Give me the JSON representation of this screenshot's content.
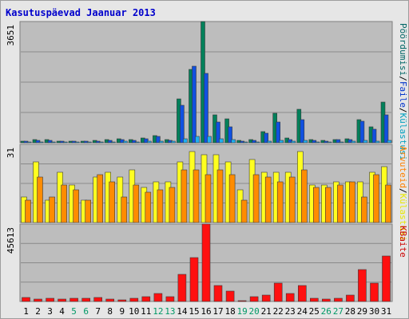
{
  "window_title": "Kasutuspäevad Jaanuar 2013",
  "colors": {
    "background": "#e6e6e6",
    "plot_background": "#bdbdbd",
    "weekend": "#009966",
    "weekday": "#000000",
    "title": "#0000cc"
  },
  "chart_data": [
    {
      "type": "bar",
      "panel": "top",
      "ytick_max": "3651",
      "ylim": [
        0,
        3651
      ],
      "grid": true,
      "legend": [
        {
          "label": "Pöördumisi",
          "color": "#006666"
        },
        {
          "label": "/",
          "color": "#000000"
        },
        {
          "label": "Faile",
          "color": "#0033cc"
        },
        {
          "label": "/",
          "color": "#000000"
        },
        {
          "label": "Külastusi",
          "color": "#00a0c0"
        }
      ],
      "categories": [
        "1",
        "2",
        "3",
        "4",
        "5",
        "6",
        "7",
        "8",
        "9",
        "10",
        "11",
        "12",
        "13",
        "14",
        "15",
        "16",
        "17",
        "18",
        "19",
        "20",
        "21",
        "22",
        "23",
        "24",
        "25",
        "26",
        "27",
        "28",
        "29",
        "30",
        "31"
      ],
      "series": [
        {
          "name": "Pöördumisi",
          "color": "#00805a",
          "values": [
            60,
            95,
            85,
            60,
            60,
            55,
            65,
            95,
            130,
            95,
            145,
            210,
            105,
            1310,
            2220,
            3651,
            830,
            710,
            75,
            95,
            330,
            880,
            135,
            1010,
            85,
            80,
            105,
            120,
            700,
            480,
            1230
          ]
        },
        {
          "name": "Faile",
          "color": "#1050e0",
          "values": [
            45,
            75,
            65,
            45,
            45,
            40,
            50,
            75,
            100,
            70,
            120,
            190,
            80,
            1130,
            2300,
            2100,
            620,
            470,
            55,
            75,
            290,
            620,
            100,
            700,
            70,
            60,
            85,
            95,
            650,
            420,
            830
          ]
        },
        {
          "name": "Külastusi",
          "color": "#20b0f0",
          "values": [
            25,
            35,
            30,
            25,
            25,
            20,
            30,
            35,
            40,
            35,
            45,
            60,
            40,
            130,
            200,
            190,
            110,
            95,
            30,
            35,
            60,
            80,
            40,
            70,
            35,
            30,
            35,
            40,
            70,
            55,
            75
          ]
        }
      ]
    },
    {
      "type": "bar",
      "panel": "middle",
      "ytick_max": "31",
      "ylim": [
        0,
        31
      ],
      "grid": true,
      "legend": [
        {
          "label": "Arvuteid",
          "color": "#ff8000"
        },
        {
          "label": "/",
          "color": "#000000"
        },
        {
          "label": "Külastusi",
          "color": "#e8e800"
        }
      ],
      "categories": [
        "1",
        "2",
        "3",
        "4",
        "5",
        "6",
        "7",
        "8",
        "9",
        "10",
        "11",
        "12",
        "13",
        "14",
        "15",
        "16",
        "17",
        "18",
        "19",
        "20",
        "21",
        "22",
        "23",
        "24",
        "25",
        "26",
        "27",
        "28",
        "29",
        "30",
        "31"
      ],
      "series": [
        {
          "name": "Külastusi",
          "color": "#ffff20",
          "values": [
            10,
            24,
            9,
            20,
            15,
            9,
            18,
            20,
            18,
            21,
            14,
            16,
            16,
            24,
            28,
            27,
            27,
            24,
            13,
            25,
            20,
            20,
            20,
            28,
            15,
            15,
            16,
            16,
            16,
            20,
            22
          ]
        },
        {
          "name": "Arvuteid",
          "color": "#ff8c00",
          "values": [
            9,
            18,
            10,
            15,
            13,
            9,
            19,
            16,
            10,
            15,
            12,
            13,
            14,
            21,
            21,
            19,
            21,
            19,
            9,
            19,
            18,
            16,
            18,
            21,
            14,
            14,
            15,
            16,
            10,
            19,
            15
          ]
        }
      ]
    },
    {
      "type": "bar",
      "panel": "bottom",
      "ytick_max": "45613",
      "ylim": [
        0,
        45613
      ],
      "grid": true,
      "legend": [
        {
          "label": "KBaite",
          "color": "#cc0000"
        }
      ],
      "categories": [
        "1",
        "2",
        "3",
        "4",
        "5",
        "6",
        "7",
        "8",
        "9",
        "10",
        "11",
        "12",
        "13",
        "14",
        "15",
        "16",
        "17",
        "18",
        "19",
        "20",
        "21",
        "22",
        "23",
        "24",
        "25",
        "26",
        "27",
        "28",
        "29",
        "30",
        "31"
      ],
      "series": [
        {
          "name": "KBaite",
          "color": "#ff1010",
          "values": [
            2200,
            1400,
            1700,
            1500,
            1900,
            2100,
            2300,
            1400,
            1000,
            1700,
            2900,
            4900,
            2800,
            16000,
            26000,
            45613,
            9300,
            5900,
            700,
            2600,
            3700,
            11000,
            4500,
            9200,
            2000,
            1300,
            2000,
            3700,
            19000,
            11000,
            27000
          ]
        }
      ]
    }
  ],
  "x_labels": [
    {
      "t": "1",
      "weekend": false
    },
    {
      "t": "2",
      "weekend": false
    },
    {
      "t": "3",
      "weekend": false
    },
    {
      "t": "4",
      "weekend": false
    },
    {
      "t": "5",
      "weekend": true
    },
    {
      "t": "6",
      "weekend": true
    },
    {
      "t": "7",
      "weekend": false
    },
    {
      "t": "8",
      "weekend": false
    },
    {
      "t": "9",
      "weekend": false
    },
    {
      "t": "10",
      "weekend": false
    },
    {
      "t": "11",
      "weekend": false
    },
    {
      "t": "12",
      "weekend": true
    },
    {
      "t": "13",
      "weekend": true
    },
    {
      "t": "14",
      "weekend": false
    },
    {
      "t": "15",
      "weekend": false
    },
    {
      "t": "16",
      "weekend": false
    },
    {
      "t": "17",
      "weekend": false
    },
    {
      "t": "18",
      "weekend": false
    },
    {
      "t": "19",
      "weekend": true
    },
    {
      "t": "20",
      "weekend": true
    },
    {
      "t": "21",
      "weekend": false
    },
    {
      "t": "22",
      "weekend": false
    },
    {
      "t": "23",
      "weekend": false
    },
    {
      "t": "24",
      "weekend": false
    },
    {
      "t": "25",
      "weekend": false
    },
    {
      "t": "26",
      "weekend": true
    },
    {
      "t": "27",
      "weekend": true
    },
    {
      "t": "28",
      "weekend": false
    },
    {
      "t": "29",
      "weekend": false
    },
    {
      "t": "30",
      "weekend": false
    },
    {
      "t": "31",
      "weekend": false
    }
  ]
}
